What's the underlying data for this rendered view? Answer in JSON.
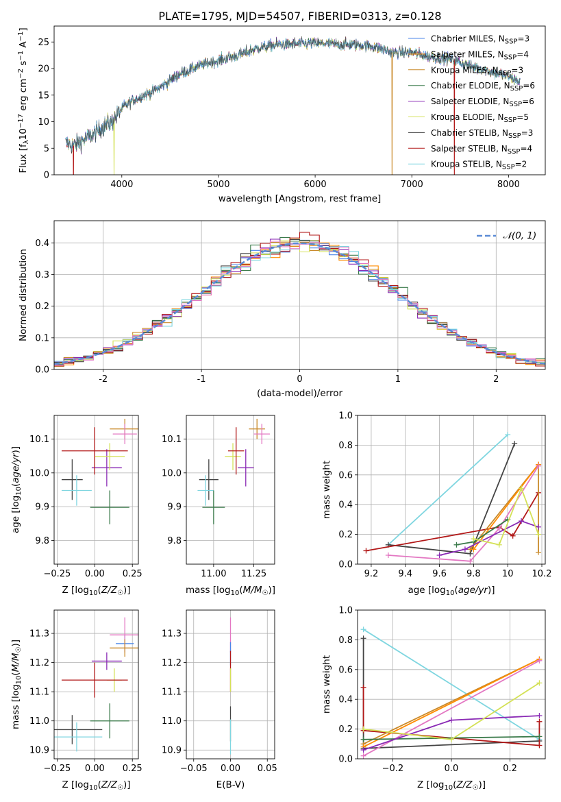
{
  "title": "PLATE=1795, MJD=54507, FIBERID=0313, z=0.128",
  "colors": {
    "Chabrier MILES": "#4a86e8",
    "Salpeter MILES": "#ff8c00",
    "Kroupa MILES": "#c98a2a",
    "Chabrier ELODIE": "#3a7a4a",
    "Salpeter ELODIE": "#8a2ab5",
    "Kroupa ELODIE": "#d4e157",
    "Chabrier STELIB": "#444444",
    "Salpeter STELIB": "#b21818",
    "Kroupa STELIB": "#7fd6e0",
    "Pink": "#e377c2"
  },
  "chart_data": [
    {
      "id": "spectrum",
      "type": "line",
      "title": "PLATE=1795, MJD=54507, FIBERID=0313, z=0.128",
      "xlabel": "wavelength [Angstrom, rest frame]",
      "ylabel": "Flux [fλ10⁻¹⁷ erg cm⁻² s⁻¹ A⁻¹]",
      "xlim": [
        3300,
        8380
      ],
      "ylim": [
        0,
        28
      ],
      "xticks": [
        4000,
        5000,
        6000,
        7000,
        8000
      ],
      "yticks": [
        0,
        5,
        10,
        15,
        20,
        25
      ],
      "x_anchor": [
        3420,
        3500,
        3600,
        3700,
        3800,
        3900,
        4000,
        4100,
        4200,
        4300,
        4400,
        4600,
        4800,
        5000,
        5200,
        5400,
        5600,
        5800,
        6000,
        6200,
        6400,
        6600,
        6800,
        7000,
        7200,
        7400,
        7600,
        7800,
        8000,
        8120
      ],
      "y_anchor": [
        6.0,
        5.5,
        6.5,
        7.5,
        9.0,
        10.0,
        12.5,
        13.8,
        14.8,
        15.5,
        16.5,
        19.0,
        20.5,
        21.5,
        22.5,
        23.8,
        24.5,
        24.6,
        24.8,
        24.6,
        24.5,
        24.2,
        23.0,
        23.0,
        22.2,
        21.8,
        20.5,
        19.5,
        18.5,
        17.5
      ],
      "legend": [
        "Chabrier MILES, N_SSP=3",
        "Salpeter MILES, N_SSP=4",
        "Kroupa MILES, N_SSP=3",
        "Chabrier ELODIE, N_SSP=6",
        "Salpeter ELODIE, N_SSP=6",
        "Kroupa ELODIE, N_SSP=5",
        "Chabrier STELIB, N_SSP=3",
        "Salpeter STELIB, N_SSP=4",
        "Kroupa STELIB, N_SSP=2"
      ],
      "legend_keys": [
        "Chabrier MILES",
        "Salpeter MILES",
        "Kroupa MILES",
        "Chabrier ELODIE",
        "Salpeter ELODIE",
        "Kroupa ELODIE",
        "Chabrier STELIB",
        "Salpeter STELIB",
        "Kroupa STELIB"
      ],
      "legend_placement": "right",
      "dropouts": [
        {
          "key": "Salpeter STELIB",
          "x": 3500
        },
        {
          "key": "Kroupa ELODIE",
          "x": 3920
        },
        {
          "key": "Kroupa MILES",
          "x": 6795
        },
        {
          "key": "Salpeter STELIB",
          "x": 7440
        }
      ],
      "grid": false
    },
    {
      "id": "residuals",
      "type": "histogram",
      "xlabel": "(data-model)/error",
      "ylabel": "Normed distribution",
      "xlim": [
        -2.5,
        2.5
      ],
      "ylim": [
        0,
        0.47
      ],
      "xticks": [
        -2,
        -1,
        0,
        1,
        2
      ],
      "yticks": [
        0.0,
        0.1,
        0.2,
        0.3,
        0.4
      ],
      "bin_width": 0.1,
      "normal_curve": {
        "label": "𝒩(0, 1)",
        "mean": 0,
        "sigma": 1,
        "color": "#5b8bd6",
        "dashed": true
      },
      "series_keys": [
        "Chabrier MILES",
        "Salpeter MILES",
        "Kroupa MILES",
        "Chabrier ELODIE",
        "Salpeter ELODIE",
        "Kroupa ELODIE",
        "Chabrier STELIB",
        "Salpeter STELIB",
        "Kroupa STELIB",
        "Pink"
      ],
      "grid": true,
      "legend_placement": "top-right"
    },
    {
      "id": "age_vs_Z",
      "type": "errorbar",
      "xlabel": "Z [log₁₀(Z/Z☉)]",
      "ylabel": "age  [log₁₀(age/yr)]",
      "xlim": [
        -0.27,
        0.29
      ],
      "ylim": [
        9.73,
        10.17
      ],
      "xticks": [
        -0.25,
        0.0,
        0.25
      ],
      "xtick_labels": [
        "−0.25",
        "0.00",
        "0.25"
      ],
      "yticks": [
        9.8,
        9.9,
        10.0,
        10.1
      ],
      "points": [
        {
          "key": "Kroupa MILES",
          "x": 0.2,
          "xerr": 0.1,
          "y": 10.13,
          "yerr": 0.03
        },
        {
          "key": "Pink",
          "x": 0.2,
          "xerr": 0.08,
          "y": 10.115,
          "yerr": 0.03
        },
        {
          "key": "Salpeter ELODIE",
          "x": 0.08,
          "xerr": 0.1,
          "y": 10.015,
          "yerr": 0.055
        },
        {
          "key": "Kroupa ELODIE",
          "x": 0.1,
          "xerr": 0.1,
          "y": 10.048,
          "yerr": 0.04
        },
        {
          "key": "Salpeter STELIB",
          "x": 0.0,
          "xerr": 0.22,
          "y": 10.065,
          "yerr": 0.07
        },
        {
          "key": "Chabrier STELIB",
          "x": -0.15,
          "xerr": 0.07,
          "y": 9.98,
          "yerr": 0.06
        },
        {
          "key": "Kroupa STELIB",
          "x": -0.12,
          "xerr": 0.1,
          "y": 9.948,
          "yerr": 0.045
        },
        {
          "key": "Chabrier ELODIE",
          "x": 0.1,
          "xerr": 0.13,
          "y": 9.898,
          "yerr": 0.05
        }
      ]
    },
    {
      "id": "age_vs_mass",
      "type": "errorbar",
      "xlabel": "mass [log₁₀(M/M☉)]",
      "ylabel": "",
      "xlim": [
        10.83,
        11.38
      ],
      "ylim": [
        9.73,
        10.17
      ],
      "xticks": [
        11.0,
        11.25
      ],
      "xtick_labels": [
        "11.00",
        "11.25"
      ],
      "yticks": [
        9.8,
        9.9,
        10.0,
        10.1
      ],
      "points": [
        {
          "key": "Kroupa MILES",
          "x": 11.27,
          "xerr": 0.05,
          "y": 10.13,
          "yerr": 0.03
        },
        {
          "key": "Pink",
          "x": 11.3,
          "xerr": 0.05,
          "y": 10.115,
          "yerr": 0.03
        },
        {
          "key": "Salpeter ELODIE",
          "x": 11.2,
          "xerr": 0.05,
          "y": 10.015,
          "yerr": 0.055
        },
        {
          "key": "Kroupa ELODIE",
          "x": 11.12,
          "xerr": 0.05,
          "y": 10.048,
          "yerr": 0.04
        },
        {
          "key": "Salpeter STELIB",
          "x": 11.14,
          "xerr": 0.05,
          "y": 10.065,
          "yerr": 0.07
        },
        {
          "key": "Chabrier STELIB",
          "x": 10.97,
          "xerr": 0.06,
          "y": 9.98,
          "yerr": 0.06
        },
        {
          "key": "Kroupa STELIB",
          "x": 10.95,
          "xerr": 0.05,
          "y": 9.948,
          "yerr": 0.045
        },
        {
          "key": "Chabrier ELODIE",
          "x": 11.0,
          "xerr": 0.07,
          "y": 9.898,
          "yerr": 0.05
        }
      ]
    },
    {
      "id": "weight_vs_age",
      "type": "line",
      "xlabel": "age  [log₁₀(age/yr)]",
      "ylabel": "mass weight",
      "xlim": [
        9.12,
        10.22
      ],
      "ylim": [
        0,
        1.0
      ],
      "xticks": [
        9.2,
        9.4,
        9.6,
        9.8,
        10.0,
        10.2
      ],
      "yticks": [
        0.0,
        0.2,
        0.4,
        0.6,
        0.8,
        1.0
      ],
      "grid": true,
      "series": [
        {
          "key": "Kroupa STELIB",
          "x": [
            9.3,
            10.0
          ],
          "y": [
            0.13,
            0.87
          ]
        },
        {
          "key": "Chabrier STELIB",
          "x": [
            9.3,
            9.78,
            10.04
          ],
          "y": [
            0.13,
            0.07,
            0.81
          ]
        },
        {
          "key": "Salpeter STELIB",
          "x": [
            9.17,
            9.95,
            10.03,
            10.18
          ],
          "y": [
            0.09,
            0.25,
            0.19,
            0.48
          ]
        },
        {
          "key": "Kroupa MILES",
          "x": [
            9.78,
            10.18,
            10.18
          ],
          "y": [
            0.1,
            0.67,
            0.08
          ]
        },
        {
          "key": "Salpeter MILES",
          "x": [
            9.8,
            10.18
          ],
          "y": [
            0.1,
            0.67
          ]
        },
        {
          "key": "Pink",
          "x": [
            9.3,
            9.78,
            9.95,
            10.18
          ],
          "y": [
            0.06,
            0.02,
            0.24,
            0.66
          ]
        },
        {
          "key": "Chabrier ELODIE",
          "x": [
            9.7,
            9.8,
            10.0
          ],
          "y": [
            0.13,
            0.15,
            0.3
          ]
        },
        {
          "key": "Salpeter ELODIE",
          "x": [
            9.6,
            9.75,
            10.08,
            10.18
          ],
          "y": [
            0.06,
            0.1,
            0.29,
            0.25
          ]
        },
        {
          "key": "Kroupa ELODIE",
          "x": [
            9.8,
            9.95,
            10.08,
            10.18
          ],
          "y": [
            0.17,
            0.13,
            0.51,
            0.2
          ]
        }
      ]
    },
    {
      "id": "mass_vs_Z",
      "type": "errorbar",
      "xlabel": "Z [log₁₀(Z/Z☉)]",
      "ylabel": "mass [log₁₀(M/M☉)]",
      "xlim": [
        -0.27,
        0.29
      ],
      "ylim": [
        10.87,
        11.38
      ],
      "xticks": [
        -0.25,
        0.0,
        0.25
      ],
      "xtick_labels": [
        "−0.25",
        "0.00",
        "0.25"
      ],
      "yticks": [
        10.9,
        11.0,
        11.1,
        11.2,
        11.3
      ],
      "points": [
        {
          "key": "Chabrier MILES",
          "x": 0.2,
          "xerr": 0.06,
          "y": 11.265,
          "yerr": 0.03
        },
        {
          "key": "Pink",
          "x": 0.2,
          "xerr": 0.1,
          "y": 11.295,
          "yerr": 0.06
        },
        {
          "key": "Kroupa MILES",
          "x": 0.2,
          "xerr": 0.1,
          "y": 11.25,
          "yerr": 0.03
        },
        {
          "key": "Salpeter ELODIE",
          "x": 0.08,
          "xerr": 0.1,
          "y": 11.205,
          "yerr": 0.03
        },
        {
          "key": "Kroupa ELODIE",
          "x": 0.13,
          "xerr": 0.05,
          "y": 11.14,
          "yerr": 0.04
        },
        {
          "key": "Salpeter STELIB",
          "x": 0.0,
          "xerr": 0.22,
          "y": 11.14,
          "yerr": 0.06
        },
        {
          "key": "Chabrier ELODIE",
          "x": 0.1,
          "xerr": 0.13,
          "y": 11.0,
          "yerr": 0.06
        },
        {
          "key": "Chabrier STELIB",
          "x": -0.15,
          "xerr": 0.2,
          "y": 10.97,
          "yerr": 0.05
        },
        {
          "key": "Kroupa STELIB",
          "x": -0.12,
          "xerr": 0.17,
          "y": 10.945,
          "yerr": 0.05
        }
      ]
    },
    {
      "id": "mass_vs_EBV",
      "type": "errorbar",
      "xlabel": "E(B-V)",
      "ylabel": "",
      "xlim": [
        -0.06,
        0.06
      ],
      "ylim": [
        10.87,
        11.38
      ],
      "xticks": [
        -0.05,
        0.0,
        0.05
      ],
      "xtick_labels": [
        "−0.05",
        "0.00",
        "0.05"
      ],
      "yticks": [
        10.9,
        11.0,
        11.1,
        11.2,
        11.3
      ],
      "points": [
        {
          "key": "Pink",
          "x": 0.0,
          "xerr": 0.0,
          "y": 11.295,
          "yerr": 0.06
        },
        {
          "key": "Chabrier MILES",
          "x": 0.0,
          "xerr": 0.0,
          "y": 11.23,
          "yerr": 0.04
        },
        {
          "key": "Salpeter STELIB",
          "x": 0.0,
          "xerr": 0.0,
          "y": 11.17,
          "yerr": 0.07
        },
        {
          "key": "Kroupa ELODIE",
          "x": 0.0,
          "xerr": 0.0,
          "y": 11.14,
          "yerr": 0.04
        },
        {
          "key": "Chabrier STELIB",
          "x": 0.0,
          "xerr": 0.0,
          "y": 10.99,
          "yerr": 0.06
        },
        {
          "key": "Kroupa STELIB",
          "x": 0.0,
          "xerr": 0.0,
          "y": 10.945,
          "yerr": 0.06
        }
      ]
    },
    {
      "id": "weight_vs_Z",
      "type": "line",
      "xlabel": "Z [log₁₀(Z/Z☉)]",
      "ylabel": "mass weight",
      "xlim": [
        -0.32,
        0.32
      ],
      "ylim": [
        0,
        1.0
      ],
      "xticks": [
        -0.2,
        0.0,
        0.2
      ],
      "xtick_labels": [
        "−0.2",
        "0.0",
        "0.2"
      ],
      "yticks": [
        0.0,
        0.2,
        0.4,
        0.6,
        0.8,
        1.0
      ],
      "grid": true,
      "series": [
        {
          "key": "Kroupa STELIB",
          "x": [
            -0.3,
            0.3
          ],
          "y": [
            0.87,
            0.13
          ]
        },
        {
          "key": "Chabrier STELIB",
          "x": [
            -0.3,
            -0.3,
            0.3
          ],
          "y": [
            0.81,
            0.07,
            0.12
          ]
        },
        {
          "key": "Salpeter STELIB",
          "x": [
            -0.3,
            -0.3,
            0.3,
            0.3
          ],
          "y": [
            0.48,
            0.19,
            0.09,
            0.25
          ]
        },
        {
          "key": "Kroupa MILES",
          "x": [
            -0.3,
            0.3
          ],
          "y": [
            0.1,
            0.67
          ]
        },
        {
          "key": "Salpeter MILES",
          "x": [
            -0.3,
            0.3
          ],
          "y": [
            0.08,
            0.67
          ]
        },
        {
          "key": "Pink",
          "x": [
            -0.3,
            0.3
          ],
          "y": [
            0.02,
            0.66
          ]
        },
        {
          "key": "Chabrier ELODIE",
          "x": [
            -0.3,
            0.3
          ],
          "y": [
            0.13,
            0.15
          ]
        },
        {
          "key": "Salpeter ELODIE",
          "x": [
            -0.3,
            0.0,
            0.3
          ],
          "y": [
            0.06,
            0.26,
            0.29
          ]
        },
        {
          "key": "Kroupa ELODIE",
          "x": [
            -0.3,
            0.0,
            0.3
          ],
          "y": [
            0.2,
            0.13,
            0.51
          ]
        }
      ]
    }
  ]
}
